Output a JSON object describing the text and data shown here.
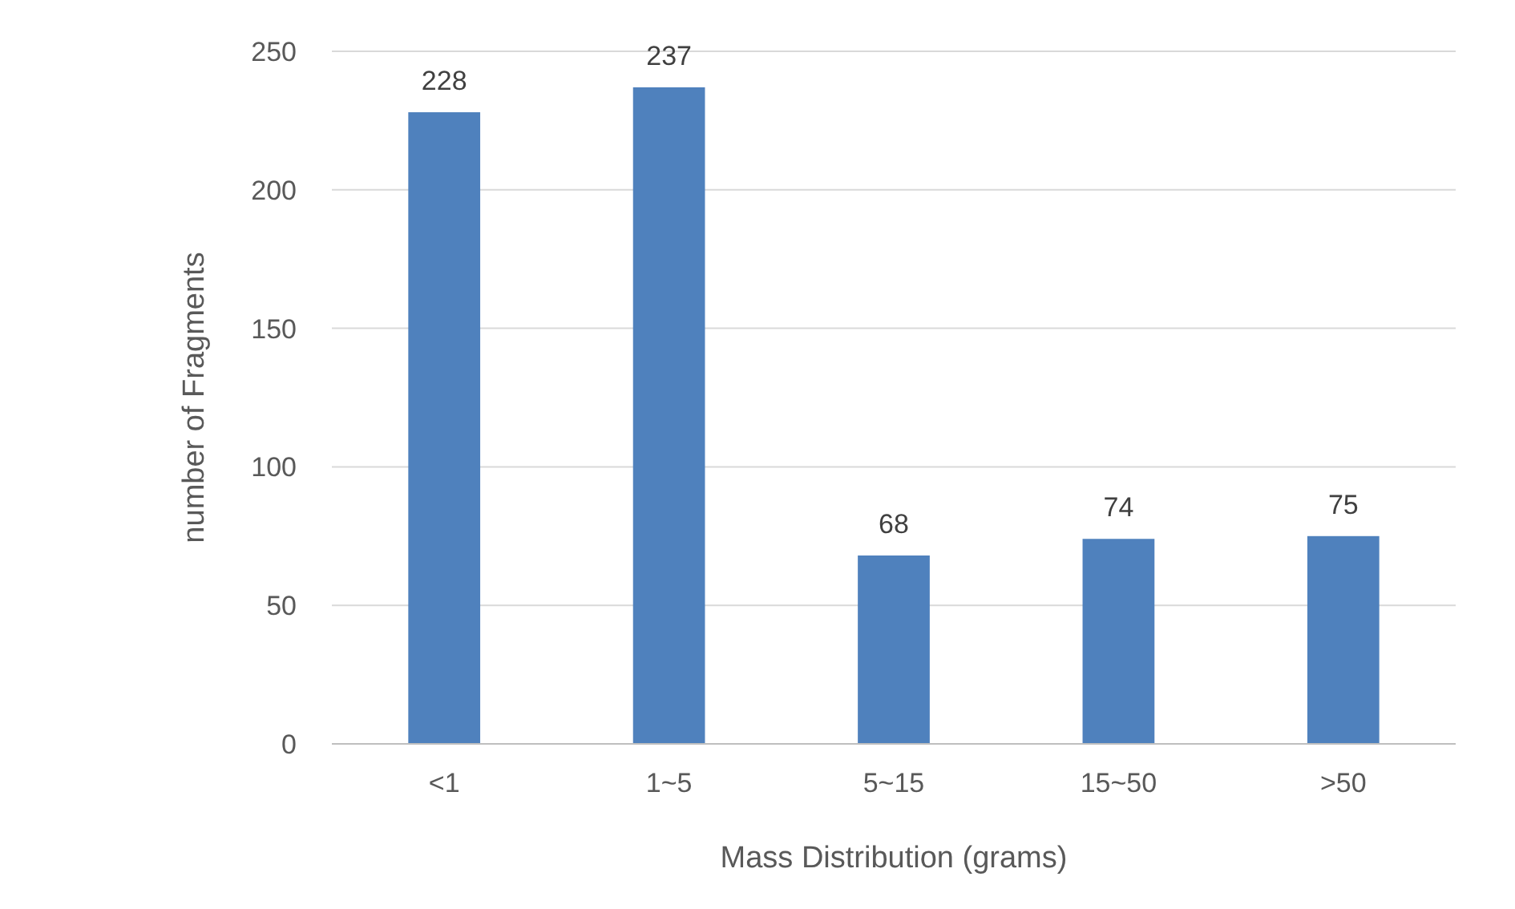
{
  "chart_data": {
    "type": "bar",
    "xlabel": "Mass Distribution (grams)",
    "ylabel": "number of Fragments",
    "categories": [
      "<1",
      "1~5",
      "5~15",
      "15~50",
      ">50"
    ],
    "values": [
      228,
      237,
      68,
      74,
      75
    ],
    "color": "#4f81bd",
    "ylim": [
      0,
      250
    ],
    "yticks": [
      0,
      50,
      100,
      150,
      200,
      250
    ],
    "grid": "y",
    "data_labels": true
  }
}
